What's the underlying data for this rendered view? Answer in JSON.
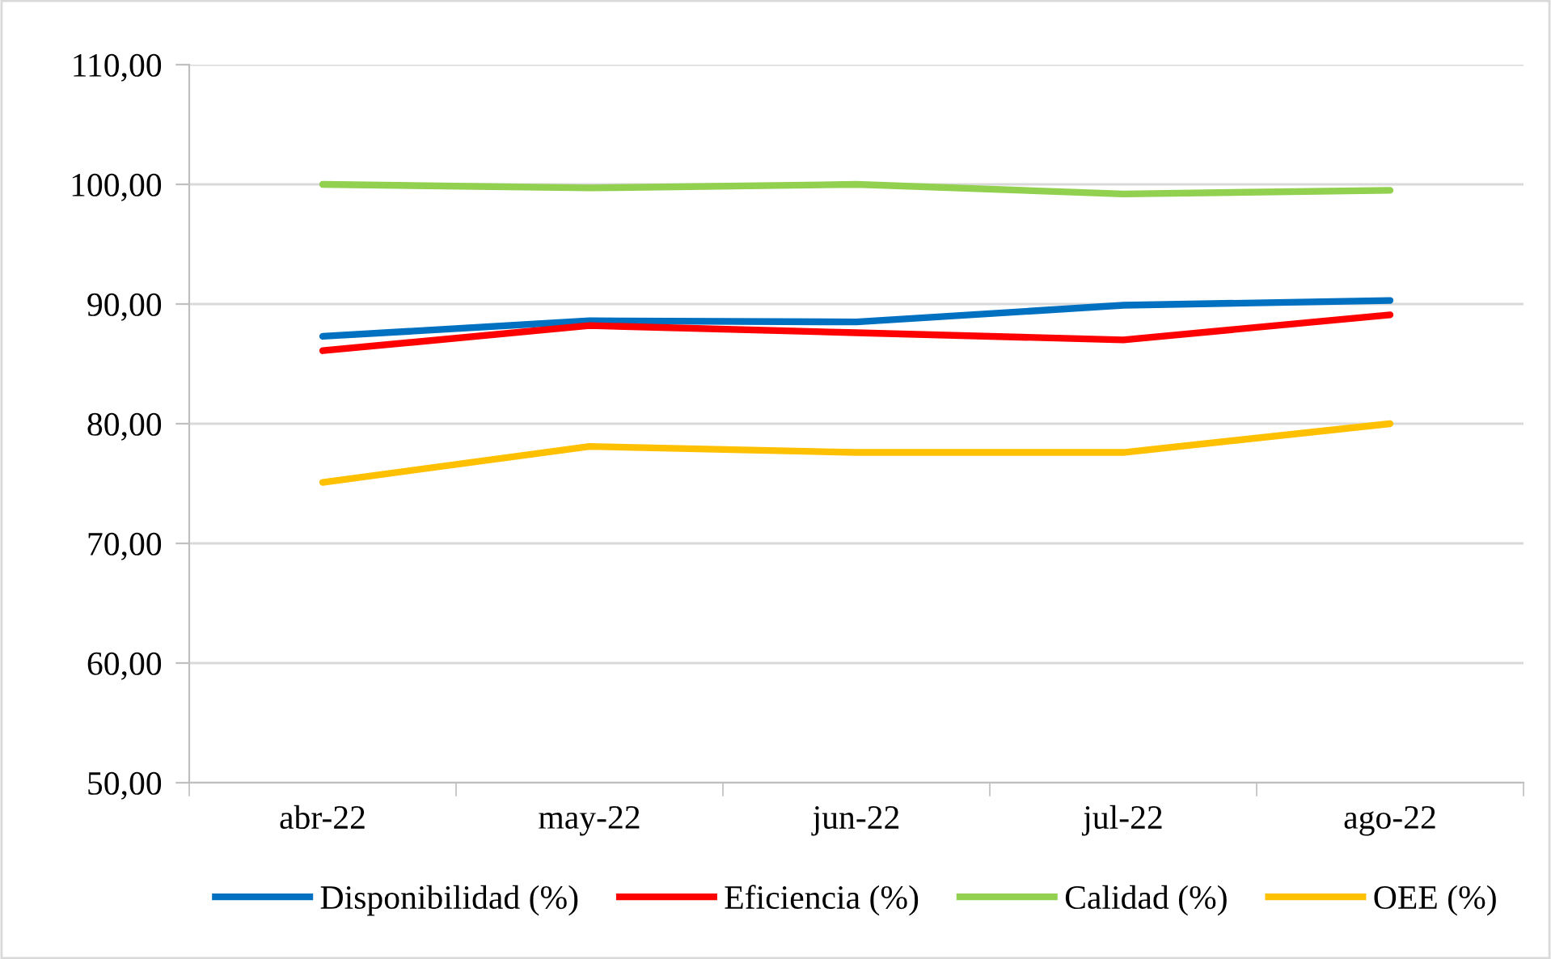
{
  "chart_data": {
    "type": "line",
    "categories": [
      "abr-22",
      "may-22",
      "jun-22",
      "jul-22",
      "ago-22"
    ],
    "series": [
      {
        "name": "Disponibilidad (%)",
        "color": "#0070c0",
        "values": [
          87.3,
          88.6,
          88.5,
          89.9,
          90.3
        ]
      },
      {
        "name": "Eficiencia (%)",
        "color": "#ff0000",
        "values": [
          86.1,
          88.2,
          87.6,
          87.0,
          89.1
        ]
      },
      {
        "name": "Calidad (%)",
        "color": "#92d050",
        "values": [
          100.0,
          99.7,
          100.0,
          99.2,
          99.5
        ]
      },
      {
        "name": "OEE (%)",
        "color": "#ffc000",
        "values": [
          75.1,
          78.1,
          77.6,
          77.6,
          80.0
        ]
      }
    ],
    "ylim": [
      50,
      110
    ],
    "yticks": [
      {
        "value": 50,
        "label": "50,00"
      },
      {
        "value": 60,
        "label": "60,00"
      },
      {
        "value": 70,
        "label": "70,00"
      },
      {
        "value": 80,
        "label": "80,00"
      },
      {
        "value": 90,
        "label": "90,00"
      },
      {
        "value": 100,
        "label": "100,00"
      },
      {
        "value": 110,
        "label": "110,00"
      }
    ],
    "grid": "y",
    "legend": "bottom",
    "marker": "none",
    "line_style": "solid"
  }
}
